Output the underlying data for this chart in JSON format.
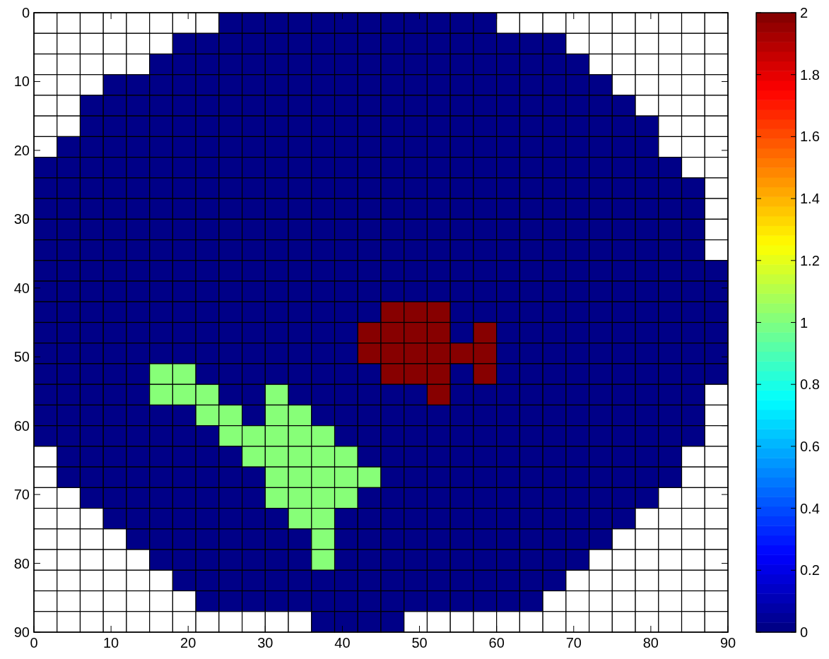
{
  "chart_data": {
    "type": "heatmap",
    "x": [
      1.5,
      4.5,
      7.5,
      10.5,
      13.5,
      16.5,
      19.5,
      22.5,
      25.5,
      28.5,
      31.5,
      34.5,
      37.5,
      40.5,
      43.5,
      46.5,
      49.5,
      52.5,
      55.5,
      58.5,
      61.5,
      64.5,
      67.5,
      70.5,
      73.5,
      76.5,
      79.5,
      82.5,
      85.5,
      88.5
    ],
    "xlim": [
      0,
      90
    ],
    "xticks": [
      0,
      10,
      20,
      30,
      40,
      50,
      60,
      70,
      80,
      90
    ],
    "ylim": [
      90,
      0
    ],
    "yticks": [
      0,
      10,
      20,
      30,
      40,
      50,
      60,
      70,
      80,
      90
    ],
    "clim": [
      0,
      2
    ],
    "cticks": [
      0,
      0.2,
      0.4,
      0.6,
      0.8,
      1,
      1.2,
      1.4,
      1.6,
      1.8,
      2
    ],
    "cells": [
      [
        null,
        null,
        null,
        null,
        null,
        null,
        null,
        null,
        0,
        0,
        0,
        0,
        0,
        0,
        0,
        0,
        0,
        0,
        0,
        0,
        null,
        null,
        null,
        null,
        null,
        null,
        null,
        null,
        null,
        null
      ],
      [
        null,
        null,
        null,
        null,
        null,
        null,
        0,
        0,
        0,
        0,
        0,
        0,
        0,
        0,
        0,
        0,
        0,
        0,
        0,
        0,
        0,
        0,
        0,
        null,
        null,
        null,
        null,
        null,
        null,
        null
      ],
      [
        null,
        null,
        null,
        null,
        null,
        0,
        0,
        0,
        0,
        0,
        0,
        0,
        0,
        0,
        0,
        0,
        0,
        0,
        0,
        0,
        0,
        0,
        0,
        0,
        null,
        null,
        null,
        null,
        null,
        null
      ],
      [
        null,
        null,
        null,
        0,
        0,
        0,
        0,
        0,
        0,
        0,
        0,
        0,
        0,
        0,
        0,
        0,
        0,
        0,
        0,
        0,
        0,
        0,
        0,
        0,
        0,
        null,
        null,
        null,
        null,
        null
      ],
      [
        null,
        null,
        0,
        0,
        0,
        0,
        0,
        0,
        0,
        0,
        0,
        0,
        0,
        0,
        0,
        0,
        0,
        0,
        0,
        0,
        0,
        0,
        0,
        0,
        0,
        0,
        null,
        null,
        null,
        null
      ],
      [
        null,
        null,
        0,
        0,
        0,
        0,
        0,
        0,
        0,
        0,
        0,
        0,
        0,
        0,
        0,
        0,
        0,
        0,
        0,
        0,
        0,
        0,
        0,
        0,
        0,
        0,
        0,
        null,
        null,
        null
      ],
      [
        null,
        0,
        0,
        0,
        0,
        0,
        0,
        0,
        0,
        0,
        0,
        0,
        0,
        0,
        0,
        0,
        0,
        0,
        0,
        0,
        0,
        0,
        0,
        0,
        0,
        0,
        0,
        null,
        null,
        null
      ],
      [
        0,
        0,
        0,
        0,
        0,
        0,
        0,
        0,
        0,
        0,
        0,
        0,
        0,
        0,
        0,
        0,
        0,
        0,
        0,
        0,
        0,
        0,
        0,
        0,
        0,
        0,
        0,
        0,
        null,
        null
      ],
      [
        0,
        0,
        0,
        0,
        0,
        0,
        0,
        0,
        0,
        0,
        0,
        0,
        0,
        0,
        0,
        0,
        0,
        0,
        0,
        0,
        0,
        0,
        0,
        0,
        0,
        0,
        0,
        0,
        0,
        null
      ],
      [
        0,
        0,
        0,
        0,
        0,
        0,
        0,
        0,
        0,
        0,
        0,
        0,
        0,
        0,
        0,
        0,
        0,
        0,
        0,
        0,
        0,
        0,
        0,
        0,
        0,
        0,
        0,
        0,
        0,
        null
      ],
      [
        0,
        0,
        0,
        0,
        0,
        0,
        0,
        0,
        0,
        0,
        0,
        0,
        0,
        0,
        0,
        0,
        0,
        0,
        0,
        0,
        0,
        0,
        0,
        0,
        0,
        0,
        0,
        0,
        0,
        null
      ],
      [
        0,
        0,
        0,
        0,
        0,
        0,
        0,
        0,
        0,
        0,
        0,
        0,
        0,
        0,
        0,
        0,
        0,
        0,
        0,
        0,
        0,
        0,
        0,
        0,
        0,
        0,
        0,
        0,
        0,
        null
      ],
      [
        0,
        0,
        0,
        0,
        0,
        0,
        0,
        0,
        0,
        0,
        0,
        0,
        0,
        0,
        0,
        0,
        0,
        0,
        0,
        0,
        0,
        0,
        0,
        0,
        0,
        0,
        0,
        0,
        0,
        0
      ],
      [
        0,
        0,
        0,
        0,
        0,
        0,
        0,
        0,
        0,
        0,
        0,
        0,
        0,
        0,
        0,
        0,
        0,
        0,
        0,
        0,
        0,
        0,
        0,
        0,
        0,
        0,
        0,
        0,
        0,
        0
      ],
      [
        0,
        0,
        0,
        0,
        0,
        0,
        0,
        0,
        0,
        0,
        0,
        0,
        0,
        0,
        0,
        2,
        2,
        2,
        0,
        0,
        0,
        0,
        0,
        0,
        0,
        0,
        0,
        0,
        0,
        0
      ],
      [
        0,
        0,
        0,
        0,
        0,
        0,
        0,
        0,
        0,
        0,
        0,
        0,
        0,
        0,
        2,
        2,
        2,
        2,
        0,
        2,
        0,
        0,
        0,
        0,
        0,
        0,
        0,
        0,
        0,
        0
      ],
      [
        0,
        0,
        0,
        0,
        0,
        0,
        0,
        0,
        0,
        0,
        0,
        0,
        0,
        0,
        2,
        2,
        2,
        2,
        2,
        2,
        0,
        0,
        0,
        0,
        0,
        0,
        0,
        0,
        0,
        0
      ],
      [
        0,
        0,
        0,
        0,
        0,
        1,
        1,
        0,
        0,
        0,
        0,
        0,
        0,
        0,
        0,
        2,
        2,
        2,
        0,
        2,
        0,
        0,
        0,
        0,
        0,
        0,
        0,
        0,
        0,
        0
      ],
      [
        0,
        0,
        0,
        0,
        0,
        1,
        1,
        1,
        0,
        0,
        1,
        0,
        0,
        0,
        0,
        0,
        0,
        2,
        0,
        0,
        0,
        0,
        0,
        0,
        0,
        0,
        0,
        0,
        0,
        null
      ],
      [
        0,
        0,
        0,
        0,
        0,
        0,
        0,
        1,
        1,
        0,
        1,
        1,
        0,
        0,
        0,
        0,
        0,
        0,
        0,
        0,
        0,
        0,
        0,
        0,
        0,
        0,
        0,
        0,
        0,
        null
      ],
      [
        0,
        0,
        0,
        0,
        0,
        0,
        0,
        0,
        1,
        1,
        1,
        1,
        1,
        0,
        0,
        0,
        0,
        0,
        0,
        0,
        0,
        0,
        0,
        0,
        0,
        0,
        0,
        0,
        0,
        null
      ],
      [
        null,
        0,
        0,
        0,
        0,
        0,
        0,
        0,
        0,
        1,
        1,
        1,
        1,
        1,
        0,
        0,
        0,
        0,
        0,
        0,
        0,
        0,
        0,
        0,
        0,
        0,
        0,
        0,
        null,
        null
      ],
      [
        null,
        0,
        0,
        0,
        0,
        0,
        0,
        0,
        0,
        0,
        1,
        1,
        1,
        1,
        1,
        0,
        0,
        0,
        0,
        0,
        0,
        0,
        0,
        0,
        0,
        0,
        0,
        0,
        null,
        null
      ],
      [
        null,
        null,
        0,
        0,
        0,
        0,
        0,
        0,
        0,
        0,
        1,
        1,
        1,
        1,
        0,
        0,
        0,
        0,
        0,
        0,
        0,
        0,
        0,
        0,
        0,
        0,
        0,
        null,
        null,
        null
      ],
      [
        null,
        null,
        null,
        0,
        0,
        0,
        0,
        0,
        0,
        0,
        0,
        1,
        1,
        0,
        0,
        0,
        0,
        0,
        0,
        0,
        0,
        0,
        0,
        0,
        0,
        0,
        null,
        null,
        null,
        null
      ],
      [
        null,
        null,
        null,
        null,
        0,
        0,
        0,
        0,
        0,
        0,
        0,
        0,
        1,
        0,
        0,
        0,
        0,
        0,
        0,
        0,
        0,
        0,
        0,
        0,
        0,
        null,
        null,
        null,
        null,
        null
      ],
      [
        null,
        null,
        null,
        null,
        null,
        0,
        0,
        0,
        0,
        0,
        0,
        0,
        1,
        0,
        0,
        0,
        0,
        0,
        0,
        0,
        0,
        0,
        0,
        0,
        null,
        null,
        null,
        null,
        null,
        null
      ],
      [
        null,
        null,
        null,
        null,
        null,
        null,
        0,
        0,
        0,
        0,
        0,
        0,
        0,
        0,
        0,
        0,
        0,
        0,
        0,
        0,
        0,
        0,
        0,
        null,
        null,
        null,
        null,
        null,
        null,
        null
      ],
      [
        null,
        null,
        null,
        null,
        null,
        null,
        null,
        0,
        0,
        0,
        0,
        0,
        0,
        0,
        0,
        0,
        0,
        0,
        0,
        0,
        0,
        0,
        null,
        null,
        null,
        null,
        null,
        null,
        null,
        null
      ],
      [
        null,
        null,
        null,
        null,
        null,
        null,
        null,
        null,
        null,
        null,
        null,
        null,
        0,
        0,
        0,
        0,
        null,
        null,
        null,
        null,
        null,
        null,
        null,
        null,
        null,
        null,
        null,
        null,
        null,
        null
      ]
    ]
  }
}
